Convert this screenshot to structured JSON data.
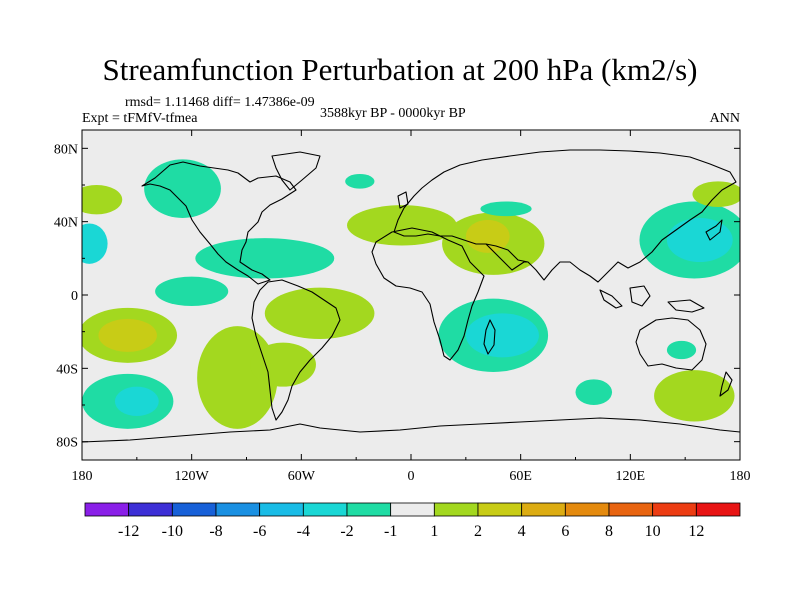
{
  "chart_data": {
    "type": "heatmap",
    "title": "Streamfunction Perturbation at 200 hPa (km2/s)",
    "stats": "rmsd= 1.11468  diff= 1.47386e-09",
    "experiment": "Expt = tFMfV-tfmea",
    "period": "3588kyr BP - 0000kyr BP",
    "season": "ANN",
    "xlim": [
      -180,
      180
    ],
    "ylim": [
      -90,
      90
    ],
    "x_ticks": [
      {
        "value": -180,
        "label": "180"
      },
      {
        "value": -120,
        "label": "120W"
      },
      {
        "value": -60,
        "label": "60W"
      },
      {
        "value": 0,
        "label": "0"
      },
      {
        "value": 60,
        "label": "60E"
      },
      {
        "value": 120,
        "label": "120E"
      },
      {
        "value": 180,
        "label": "180"
      }
    ],
    "y_ticks": [
      {
        "value": 80,
        "label": "80N"
      },
      {
        "value": 40,
        "label": "40N"
      },
      {
        "value": 0,
        "label": "0"
      },
      {
        "value": -40,
        "label": "40S"
      },
      {
        "value": -80,
        "label": "80S"
      }
    ],
    "colorbar": {
      "colors": [
        "#8a1fe8",
        "#3d2fd6",
        "#1760d8",
        "#1a90e2",
        "#19bce6",
        "#1ad7d5",
        "#1fdca4",
        "#ececec",
        "#a3d81f",
        "#c8cc16",
        "#dcac12",
        "#e48a0e",
        "#e86410",
        "#ec3c12",
        "#e81414"
      ],
      "labels": [
        "-12",
        "-10",
        "-8",
        "-6",
        "-4",
        "-2",
        "-1",
        "1",
        "2",
        "4",
        "6",
        "8",
        "10",
        "12"
      ]
    },
    "anomaly_regions": [
      {
        "lon": -125,
        "lat": 58,
        "rlon": 21,
        "rlat": 16,
        "value": -1.5
      },
      {
        "lon": -28,
        "lat": 62,
        "rlon": 8,
        "rlat": 4,
        "value": -1.5
      },
      {
        "lon": -172,
        "lat": 52,
        "rlon": 14,
        "rlat": 8,
        "value": 1.5
      },
      {
        "lon": -176,
        "lat": 28,
        "rlon": 10,
        "rlat": 11,
        "value": -2.5
      },
      {
        "lon": -80,
        "lat": 20,
        "rlon": 38,
        "rlat": 11,
        "value": -1.5
      },
      {
        "lon": -5,
        "lat": 38,
        "rlon": 30,
        "rlat": 11,
        "value": 1.5
      },
      {
        "lon": 45,
        "lat": 28,
        "rlon": 28,
        "rlat": 17,
        "value": 1.5
      },
      {
        "lon": 42,
        "lat": 32,
        "rlon": 12,
        "rlat": 9,
        "value": 2.5
      },
      {
        "lon": 52,
        "lat": 47,
        "rlon": 14,
        "rlat": 4,
        "value": -1.5
      },
      {
        "lon": 155,
        "lat": 30,
        "rlon": 30,
        "rlat": 21,
        "value": -1.5
      },
      {
        "lon": 158,
        "lat": 30,
        "rlon": 18,
        "rlat": 12,
        "value": -2.5
      },
      {
        "lon": 168,
        "lat": 55,
        "rlon": 14,
        "rlat": 7,
        "value": 1.5
      },
      {
        "lon": -120,
        "lat": 2,
        "rlon": 20,
        "rlat": 8,
        "value": -1.5
      },
      {
        "lon": -155,
        "lat": -22,
        "rlon": 27,
        "rlat": 15,
        "value": 1.5
      },
      {
        "lon": -155,
        "lat": -22,
        "rlon": 16,
        "rlat": 9,
        "value": 2.5
      },
      {
        "lon": -153,
        "lat": -22,
        "rlon": 8,
        "rlat": 5,
        "value": 3.5
      },
      {
        "lon": -155,
        "lat": -58,
        "rlon": 25,
        "rlat": 15,
        "value": -1.5
      },
      {
        "lon": -150,
        "lat": -58,
        "rlon": 12,
        "rlat": 8,
        "value": -2.5
      },
      {
        "lon": -95,
        "lat": -45,
        "rlon": 22,
        "rlat": 28,
        "value": 1.5
      },
      {
        "lon": -50,
        "lat": -10,
        "rlon": 30,
        "rlat": 14,
        "value": 1.5
      },
      {
        "lon": -70,
        "lat": -38,
        "rlon": 18,
        "rlat": 12,
        "value": 1.5
      },
      {
        "lon": 45,
        "lat": -22,
        "rlon": 30,
        "rlat": 20,
        "value": -1.5
      },
      {
        "lon": 50,
        "lat": -22,
        "rlon": 20,
        "rlat": 12,
        "value": -2.5
      },
      {
        "lon": 100,
        "lat": -53,
        "rlon": 10,
        "rlat": 7,
        "value": -1.5
      },
      {
        "lon": 148,
        "lat": -30,
        "rlon": 8,
        "rlat": 5,
        "value": -1.5
      },
      {
        "lon": 155,
        "lat": -55,
        "rlon": 22,
        "rlat": 14,
        "value": 1.5
      }
    ]
  }
}
